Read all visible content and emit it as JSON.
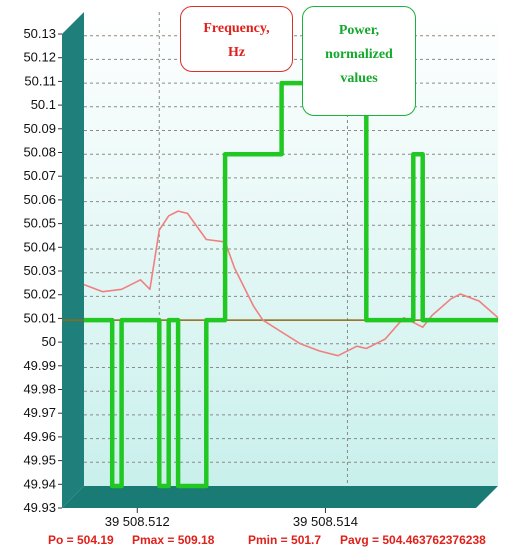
{
  "chart_data": {
    "type": "line",
    "title": "",
    "xlabel": "",
    "ylabel": "",
    "ylim": [
      49.93,
      50.13
    ],
    "yticks": [
      "50.13",
      "50.12",
      "50.11",
      "50.1",
      "50.09",
      "50.08",
      "50.07",
      "50.06",
      "50.05",
      "50.04",
      "50.03",
      "50.02",
      "50.01",
      "50",
      "49.99",
      "49.98",
      "49.97",
      "49.96",
      "49.95",
      "49.94",
      "49.93"
    ],
    "xlim": [
      39508.5112,
      39508.5156
    ],
    "xticks": [
      "39 508.512",
      "39 508.514"
    ],
    "xtick_values": [
      39508.512,
      39508.514
    ],
    "grid": true,
    "reference_line": 50,
    "series": [
      {
        "color": "#f08080",
        "x": [
          39508.5112,
          39508.5114,
          39508.5116,
          39508.5118,
          39508.5119,
          39508.512,
          39508.5121,
          39508.5122,
          39508.5123,
          39508.5125,
          39508.5127,
          39508.5128,
          39508.513,
          39508.5131,
          39508.5133,
          39508.5135,
          39508.5137,
          39508.5139,
          39508.5141,
          39508.5142,
          39508.5144,
          39508.5146,
          39508.5148,
          39508.5149,
          39508.5151,
          39508.5152,
          39508.5154,
          39508.5156
        ],
        "values": [
          50.015,
          50.012,
          50.013,
          50.017,
          50.013,
          50.038,
          50.044,
          50.046,
          50.045,
          50.034,
          50.033,
          50.022,
          50.006,
          50.0,
          49.995,
          49.99,
          49.987,
          49.985,
          49.989,
          49.988,
          49.992,
          50.001,
          49.997,
          50.002,
          50.009,
          50.011,
          50.008,
          50.001
        ]
      },
      {
        "color": "#22c822",
        "x": [
          39508.5112,
          39508.5115,
          39508.5115,
          39508.5116,
          39508.5116,
          39508.5116,
          39508.5116,
          39508.512,
          39508.512,
          39508.5121,
          39508.5121,
          39508.5122,
          39508.5122,
          39508.5122,
          39508.5122,
          39508.5123,
          39508.5123,
          39508.5125,
          39508.5125,
          39508.5127,
          39508.5127,
          39508.5133,
          39508.5133,
          39508.5142,
          39508.5142,
          39508.5147,
          39508.5147,
          39508.5148,
          39508.5148,
          39508.5149,
          39508.5149,
          39508.5156
        ],
        "values": [
          50.0,
          50.0,
          49.93,
          49.93,
          50.0,
          50.0,
          50.0,
          50.0,
          49.93,
          49.93,
          50.0,
          50.0,
          50.0,
          49.93,
          49.93,
          49.93,
          49.93,
          49.93,
          50.0,
          50.0,
          50.07,
          50.07,
          50.1,
          50.1,
          50.0,
          50.0,
          50.07,
          50.07,
          50.0,
          50.0,
          50.0,
          50.0
        ]
      }
    ]
  },
  "annotations": {
    "frequency_lines": [
      "Frequency,",
      "Hz"
    ],
    "power_lines": [
      "Power,",
      "normalized",
      "values"
    ],
    "frequency_color": "#e0201a",
    "power_color": "#14a82c"
  },
  "footer": {
    "po": "Po = 504.19",
    "pmax": "Pmax = 509.18",
    "pmin": "Pmin = 501.7",
    "pavg": "Pavg = 504.463762376238",
    "color": "#e0201a"
  },
  "colors": {
    "wall": "#1f7f7a",
    "floor": "#1a7a74",
    "plot_top": "#ffffff",
    "plot_bottom": "#c9f0ec",
    "grid": "#8a8a8a",
    "reference": "#8b6b14"
  }
}
